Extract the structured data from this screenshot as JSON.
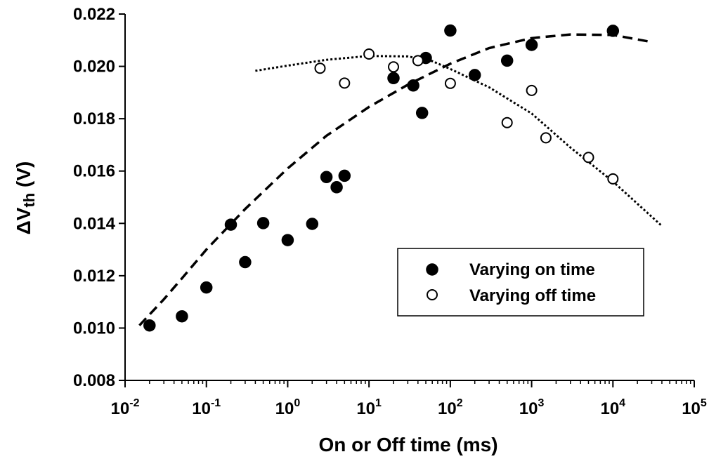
{
  "chart_data": {
    "type": "scatter",
    "xlabel": "On or Off time (ms)",
    "ylabel": {
      "delta": "Δ",
      "main": "V",
      "sub": "th",
      "unit": " (V)"
    },
    "xscale": "log",
    "xlim": [
      0.01,
      100000
    ],
    "ylim": [
      0.008,
      0.022
    ],
    "x_ticks": [
      {
        "value": 0.01,
        "base": "10",
        "exp": "-2"
      },
      {
        "value": 0.1,
        "base": "10",
        "exp": "-1"
      },
      {
        "value": 1,
        "base": "10",
        "exp": "0"
      },
      {
        "value": 10,
        "base": "10",
        "exp": "1"
      },
      {
        "value": 100,
        "base": "10",
        "exp": "2"
      },
      {
        "value": 1000,
        "base": "10",
        "exp": "3"
      },
      {
        "value": 10000,
        "base": "10",
        "exp": "4"
      },
      {
        "value": 100000,
        "base": "10",
        "exp": "5"
      }
    ],
    "y_ticks": [
      "0.008",
      "0.010",
      "0.012",
      "0.014",
      "0.016",
      "0.018",
      "0.020",
      "0.022"
    ],
    "grid": false,
    "legend_position": "lower-right",
    "series": [
      {
        "name": "Varying on time",
        "marker": "filled-circle",
        "fit_style": "dashed",
        "points": [
          [
            0.02,
            0.0101
          ],
          [
            0.05,
            0.01045
          ],
          [
            0.1,
            0.01155
          ],
          [
            0.2,
            0.01395
          ],
          [
            0.3,
            0.01252
          ],
          [
            0.5,
            0.01401
          ],
          [
            1,
            0.01336
          ],
          [
            2,
            0.01398
          ],
          [
            3,
            0.01577
          ],
          [
            4,
            0.01538
          ],
          [
            5,
            0.01582
          ],
          [
            20,
            0.01955
          ],
          [
            35,
            0.01927
          ],
          [
            45,
            0.01822
          ],
          [
            50,
            0.02032
          ],
          [
            100,
            0.02137
          ],
          [
            200,
            0.01967
          ],
          [
            500,
            0.02022
          ],
          [
            1000,
            0.02082
          ],
          [
            10000,
            0.02136
          ]
        ],
        "fit": [
          [
            0.015,
            0.0101
          ],
          [
            0.03,
            0.0111
          ],
          [
            0.05,
            0.0119
          ],
          [
            0.1,
            0.013
          ],
          [
            0.3,
            0.01455
          ],
          [
            1,
            0.0161
          ],
          [
            3,
            0.01735
          ],
          [
            10,
            0.01845
          ],
          [
            30,
            0.0193
          ],
          [
            100,
            0.0201
          ],
          [
            300,
            0.0207
          ],
          [
            1000,
            0.02108
          ],
          [
            3000,
            0.02122
          ],
          [
            10000,
            0.0212
          ],
          [
            30000,
            0.02093
          ]
        ]
      },
      {
        "name": "Varying off time",
        "marker": "open-circle",
        "fit_style": "dotted",
        "points": [
          [
            2.5,
            0.01993
          ],
          [
            5,
            0.01936
          ],
          [
            10,
            0.02047
          ],
          [
            20,
            0.01998
          ],
          [
            40,
            0.02022
          ],
          [
            100,
            0.01935
          ],
          [
            500,
            0.01785
          ],
          [
            1000,
            0.01908
          ],
          [
            1500,
            0.01727
          ],
          [
            5000,
            0.01652
          ],
          [
            10000,
            0.0157
          ]
        ],
        "fit": [
          [
            0.4,
            0.01983
          ],
          [
            1,
            0.02003
          ],
          [
            3,
            0.02025
          ],
          [
            10,
            0.0204
          ],
          [
            30,
            0.02038
          ],
          [
            60,
            0.0202
          ],
          [
            100,
            0.0199
          ],
          [
            300,
            0.0192
          ],
          [
            1000,
            0.0182
          ],
          [
            3000,
            0.0169
          ],
          [
            10000,
            0.0156
          ],
          [
            40000,
            0.0139
          ]
        ]
      }
    ]
  }
}
